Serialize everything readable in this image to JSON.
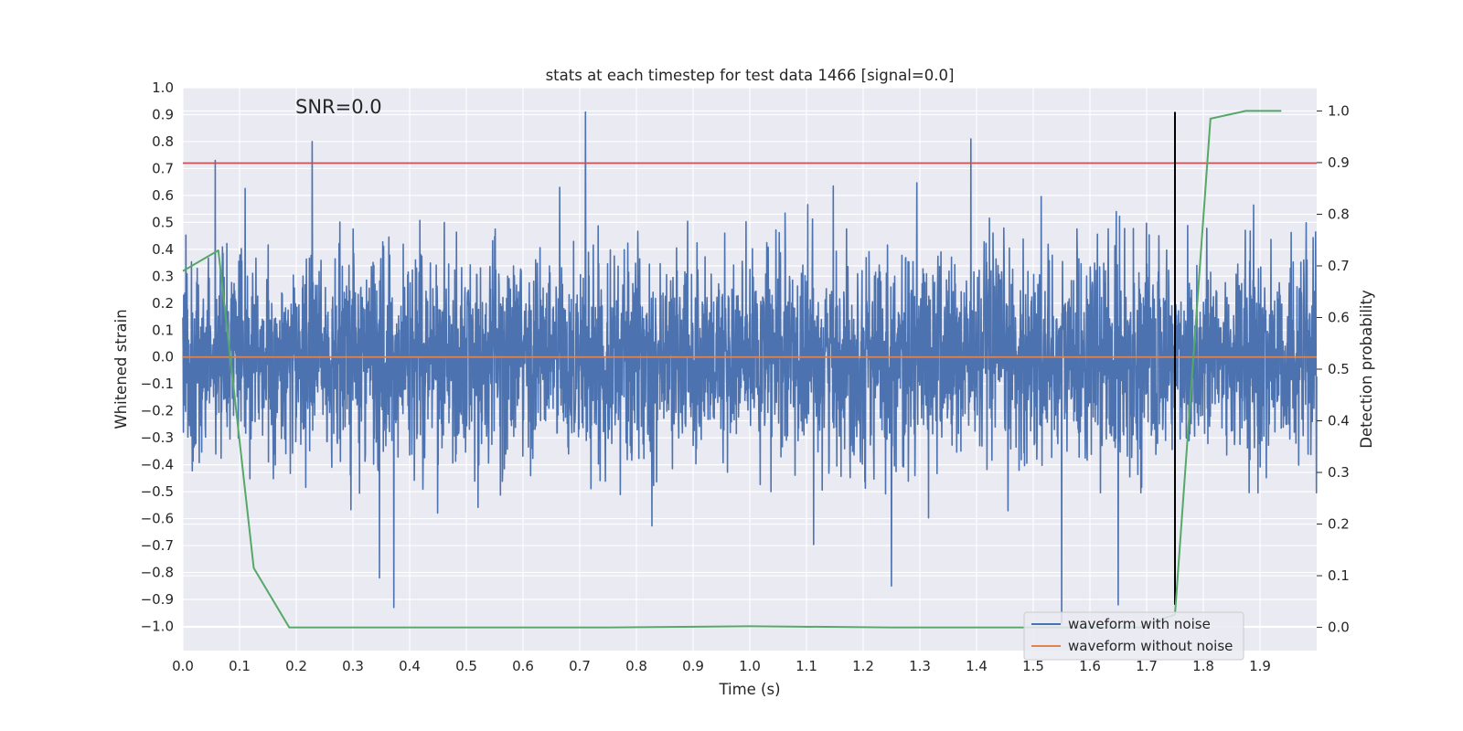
{
  "chart_data": {
    "type": "line",
    "title": "stats at each timestep for test data 1466 [signal=0.0]",
    "annotation": "SNR=0.0",
    "xlabel": "Time (s)",
    "ylabel": "Whitened strain",
    "y2label": "Detection probability",
    "xlim": [
      0.0,
      2.0
    ],
    "ylim": [
      -1.09,
      1.0
    ],
    "y2lim": [
      -0.045,
      1.045
    ],
    "x_ticks": [
      "0.0",
      "0.1",
      "0.2",
      "0.3",
      "0.4",
      "0.5",
      "0.6",
      "0.7",
      "0.8",
      "0.9",
      "1.0",
      "1.1",
      "1.2",
      "1.3",
      "1.4",
      "1.5",
      "1.6",
      "1.7",
      "1.8",
      "1.9"
    ],
    "y_ticks": [
      "1.0",
      "0.9",
      "0.8",
      "0.7",
      "0.6",
      "0.5",
      "0.4",
      "0.3",
      "0.2",
      "0.1",
      "0.0",
      "−0.1",
      "−0.2",
      "−0.3",
      "−0.4",
      "−0.5",
      "−0.6",
      "−0.7",
      "−0.8",
      "−0.9",
      "−1.0"
    ],
    "y2_ticks": [
      "1.0",
      "0.9",
      "0.8",
      "0.7",
      "0.6",
      "0.5",
      "0.4",
      "0.3",
      "0.2",
      "0.1",
      "0.0"
    ],
    "threshold_line": {
      "y": 0.72,
      "color": "#c44e52"
    },
    "detection_time_line": {
      "x": 1.75,
      "y_range": [
        -0.92,
        0.91
      ],
      "color": "#000000"
    },
    "series": [
      {
        "name": "waveform with noise",
        "color": "#4c72b0",
        "generated": {
          "n": 4096,
          "sigma": 0.19,
          "clip": [
            -0.99,
            0.91
          ]
        },
        "notable_peaks": [
          {
            "x": 0.057,
            "y": 0.73
          },
          {
            "x": 0.228,
            "y": 0.8
          },
          {
            "x": 0.71,
            "y": 0.91
          },
          {
            "x": 1.39,
            "y": 0.81
          },
          {
            "x": 0.372,
            "y": -0.93
          },
          {
            "x": 0.347,
            "y": -0.82
          },
          {
            "x": 1.55,
            "y": -0.99
          },
          {
            "x": 1.65,
            "y": -0.92
          },
          {
            "x": 1.25,
            "y": -0.85
          }
        ]
      },
      {
        "name": "waveform without noise",
        "color": "#dd8452",
        "x": [
          0.0,
          2.0
        ],
        "y": [
          0.0,
          0.0
        ]
      },
      {
        "name": "detection probability",
        "axis": "right",
        "color": "#55a868",
        "x": [
          0.0,
          0.0625,
          0.125,
          0.1875,
          0.25,
          0.5,
          0.75,
          1.0,
          1.25,
          1.5,
          1.6875,
          1.75,
          1.8125,
          1.875,
          1.9375
        ],
        "y": [
          0.69,
          0.73,
          0.115,
          0.0,
          0.0,
          0.0,
          0.0,
          0.002,
          0.0,
          0.0,
          0.0,
          0.025,
          0.985,
          1.0,
          1.0
        ]
      }
    ],
    "legend": {
      "placement": "lower-right",
      "entries": [
        "waveform with noise",
        "waveform without noise"
      ]
    }
  }
}
